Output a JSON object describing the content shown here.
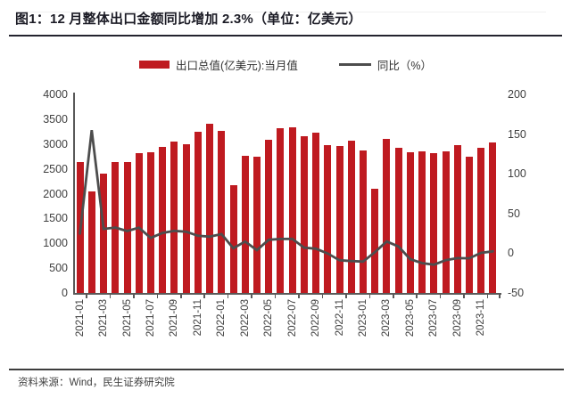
{
  "header": {
    "title": "图1：12 月整体出口金额同比增加 2.3%（单位：亿美元）"
  },
  "footer": {
    "source": "资料来源：Wind，民生证券研究院"
  },
  "colors": {
    "bar": "#bf1a20",
    "line": "#4d4d4d",
    "axis": "#595959",
    "text": "#404040"
  },
  "chart_data": {
    "type": "bar",
    "title": "图1：12 月整体出口金额同比增加 2.3%（单位：亿美元）",
    "grid": false,
    "legend_position": "top",
    "x": [
      "2021-01",
      "2021-02",
      "2021-03",
      "2021-04",
      "2021-05",
      "2021-06",
      "2021-07",
      "2021-08",
      "2021-09",
      "2021-10",
      "2021-11",
      "2021-12",
      "2022-01",
      "2022-02",
      "2022-03",
      "2022-04",
      "2022-05",
      "2022-06",
      "2022-07",
      "2022-08",
      "2022-09",
      "2022-10",
      "2022-11",
      "2022-12",
      "2023-01",
      "2023-02",
      "2023-03",
      "2023-04",
      "2023-05",
      "2023-06",
      "2023-07",
      "2023-08",
      "2023-09",
      "2023-10",
      "2023-11",
      "2023-12"
    ],
    "x_tick_labels": [
      "2021-01",
      "2021-03",
      "2021-05",
      "2021-07",
      "2021-09",
      "2021-11",
      "2022-01",
      "2022-03",
      "2022-05",
      "2022-07",
      "2022-09",
      "2022-11",
      "2023-01",
      "2023-03",
      "2023-05",
      "2023-07",
      "2023-09",
      "2023-11"
    ],
    "series": [
      {
        "name": "出口总值(亿美元):当月值",
        "type": "bar",
        "axis": "left",
        "color": "#bf1a20",
        "values": [
          2639,
          2049,
          2411,
          2639,
          2640,
          2814,
          2827,
          2943,
          3057,
          3002,
          3255,
          3405,
          3273,
          2174,
          2761,
          2736,
          3082,
          3313,
          3330,
          3149,
          3228,
          2984,
          2960,
          3061,
          2862,
          2093,
          3100,
          2928,
          2835,
          2853,
          2817,
          2848,
          2971,
          2748,
          2919,
          3036
        ]
      },
      {
        "name": "同比（%）",
        "type": "line",
        "axis": "right",
        "color": "#4d4d4d",
        "values": [
          24.8,
          154.9,
          30.6,
          32.3,
          27.9,
          32.2,
          19.3,
          25.6,
          28.1,
          27.1,
          22.0,
          20.9,
          24.1,
          6.3,
          14.7,
          3.9,
          16.9,
          17.9,
          18.0,
          7.1,
          5.7,
          -0.3,
          -8.9,
          -9.9,
          -10.5,
          1.3,
          14.8,
          8.5,
          -7.5,
          -12.4,
          -14.5,
          -8.8,
          -6.2,
          -6.4,
          0.5,
          2.3
        ]
      }
    ],
    "left_axis": {
      "min": 0,
      "max": 4000,
      "step": 500
    },
    "right_axis": {
      "min": -50,
      "max": 200,
      "step": 50
    }
  }
}
